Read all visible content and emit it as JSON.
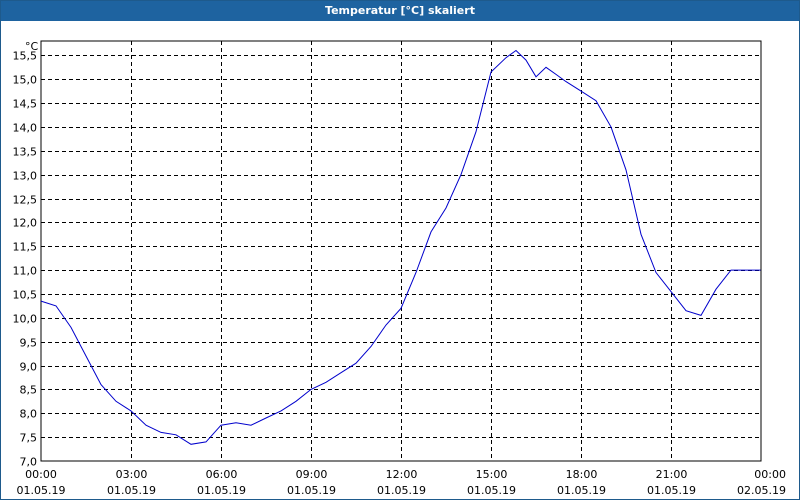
{
  "window": {
    "title": "Temperatur [°C] skaliert"
  },
  "chart_data": {
    "type": "line",
    "title": "Temperatur [°C] skaliert",
    "ylabel": "°C",
    "xlabel": "",
    "ylim": [
      7.0,
      15.8
    ],
    "xlim": [
      "2019-05-01 00:00",
      "2019-05-02 00:00"
    ],
    "grid": true,
    "line_color": "#0000cc",
    "yticks": [
      "7,0",
      "7,5",
      "8,0",
      "8,5",
      "9,0",
      "9,5",
      "10,0",
      "10,5",
      "11,0",
      "11,5",
      "12,0",
      "12,5",
      "13,0",
      "13,5",
      "14,0",
      "14,5",
      "15,0",
      "15,5"
    ],
    "xticks": [
      {
        "time": "00:00",
        "date": "01.05.19"
      },
      {
        "time": "03:00",
        "date": "01.05.19"
      },
      {
        "time": "06:00",
        "date": "01.05.19"
      },
      {
        "time": "09:00",
        "date": "01.05.19"
      },
      {
        "time": "12:00",
        "date": "01.05.19"
      },
      {
        "time": "15:00",
        "date": "01.05.19"
      },
      {
        "time": "18:00",
        "date": "01.05.19"
      },
      {
        "time": "21:00",
        "date": "01.05.19"
      },
      {
        "time": "00:00",
        "date": "02.05.19"
      }
    ],
    "series": [
      {
        "x": [
          "00:00",
          "00:30",
          "01:00",
          "01:30",
          "02:00",
          "02:30",
          "03:00",
          "03:30",
          "04:00",
          "04:30",
          "05:00",
          "05:30",
          "06:00",
          "06:30",
          "07:00",
          "07:30",
          "08:00",
          "08:30",
          "09:00",
          "09:30",
          "10:00",
          "10:30",
          "11:00",
          "11:30",
          "12:00",
          "12:30",
          "13:00",
          "13:30",
          "14:00",
          "14:30",
          "15:00",
          "15:30",
          "15:50",
          "16:10",
          "16:30",
          "16:50",
          "17:10",
          "17:30",
          "18:00",
          "18:30",
          "19:00",
          "19:30",
          "20:00",
          "20:30",
          "21:00",
          "21:30",
          "22:00",
          "22:30",
          "23:00",
          "23:30",
          "23:59"
        ],
        "y": [
          10.35,
          10.25,
          9.8,
          9.2,
          8.6,
          8.25,
          8.05,
          7.75,
          7.6,
          7.55,
          7.35,
          7.4,
          7.75,
          7.8,
          7.75,
          7.9,
          8.05,
          8.25,
          8.5,
          8.65,
          8.85,
          9.05,
          9.4,
          9.85,
          10.2,
          10.95,
          11.8,
          12.3,
          13.0,
          13.9,
          15.15,
          15.45,
          15.6,
          15.4,
          15.05,
          15.25,
          15.1,
          14.95,
          14.75,
          14.55,
          14.0,
          13.1,
          11.75,
          10.95,
          10.55,
          10.15,
          10.05,
          10.6,
          11.0,
          11.0,
          11.0
        ]
      }
    ]
  }
}
